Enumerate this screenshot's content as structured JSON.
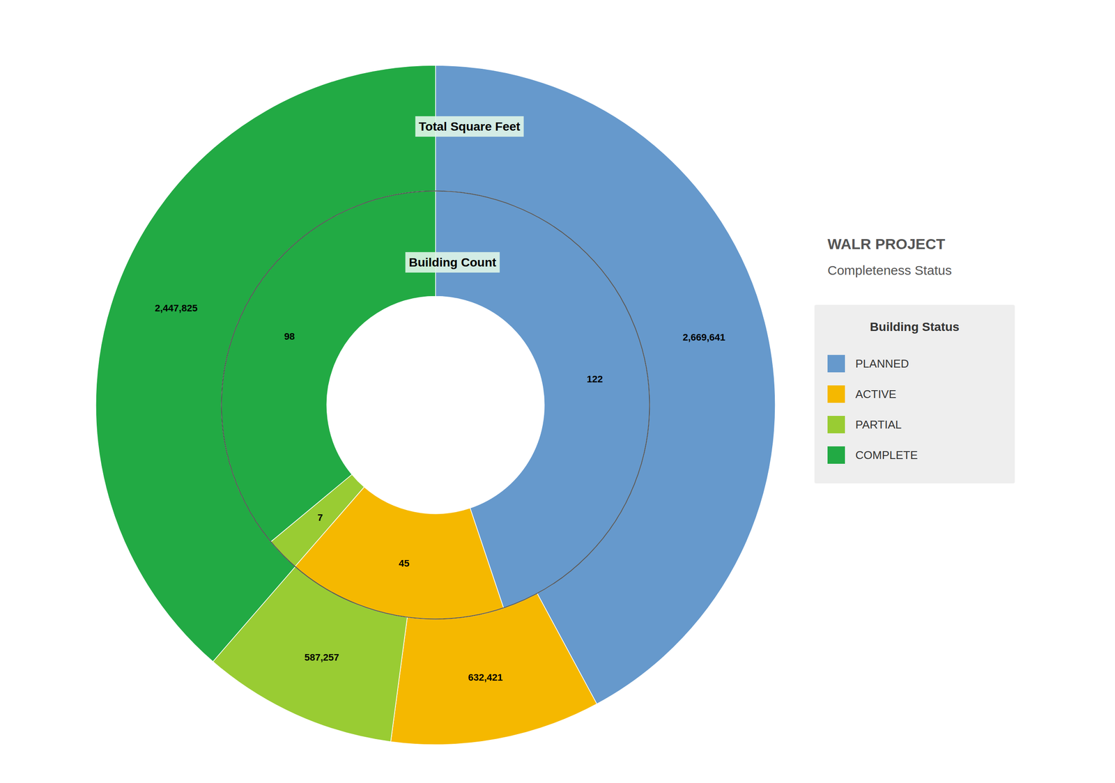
{
  "chart_data": {
    "type": "pie",
    "title": "WALR PROJECT",
    "subtitle": "Completeness Status",
    "categories": [
      "PLANNED",
      "ACTIVE",
      "PARTIAL",
      "COMPLETE"
    ],
    "colors": [
      "#6699CC",
      "#F5B800",
      "#99CC33",
      "#22AA44"
    ],
    "series": [
      {
        "name": "Total Square Feet",
        "values": [
          2669641,
          632421,
          587257,
          2447825
        ],
        "value_labels": [
          "2,669,641",
          "632,421",
          "587,257",
          "2,447,825"
        ]
      },
      {
        "name": "Building Count",
        "values": [
          122,
          45,
          7,
          98
        ]
      }
    ],
    "legend_title": "Building Status",
    "legend": "right",
    "data_labels": true
  }
}
